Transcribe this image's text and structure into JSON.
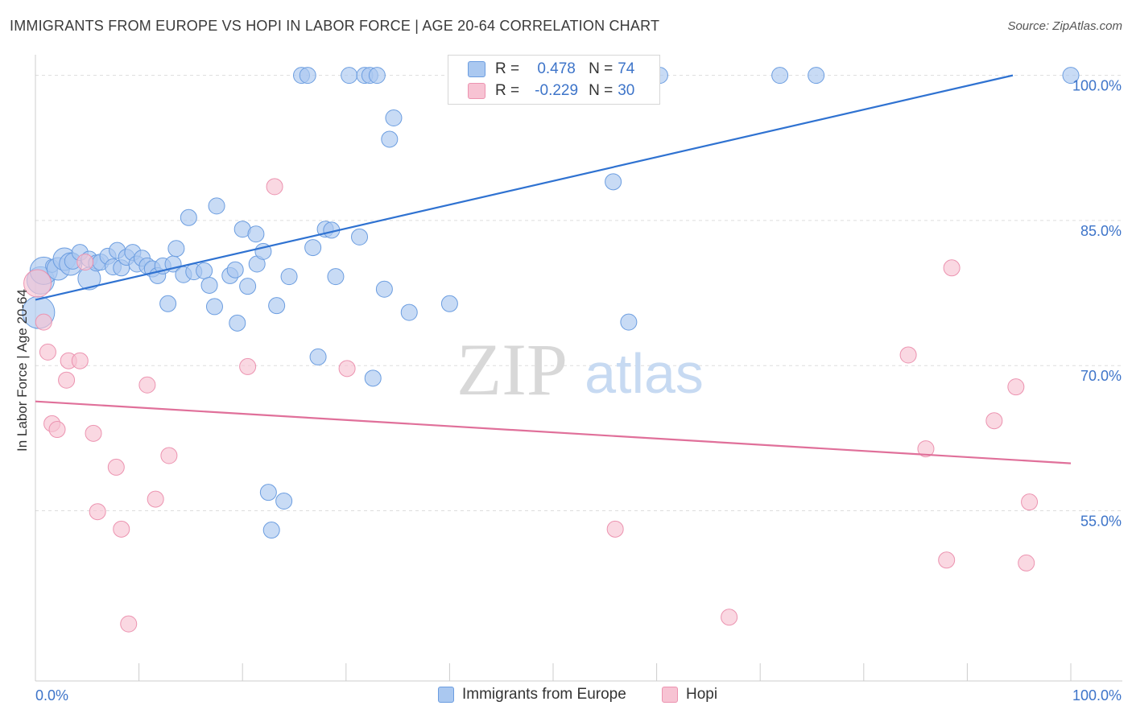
{
  "header": {
    "title": "IMMIGRANTS FROM EUROPE VS HOPI IN LABOR FORCE | AGE 20-64 CORRELATION CHART",
    "source": "Source: ZipAtlas.com"
  },
  "watermark": {
    "part1": "ZIP",
    "part2": "atlas"
  },
  "stats": {
    "r_label": "R =",
    "n_label": "N =",
    "rows": [
      {
        "r": "0.478",
        "n": "74",
        "color": "#aac8f0",
        "border": "#6b9de0"
      },
      {
        "r": "-0.229",
        "n": "30",
        "color": "#f7c3d3",
        "border": "#ec93b0"
      }
    ]
  },
  "legend": {
    "items": [
      {
        "label": "Immigrants from Europe",
        "color": "#aac8f0",
        "border": "#6b9de0"
      },
      {
        "label": "Hopi",
        "color": "#f7c3d3",
        "border": "#ec93b0"
      }
    ]
  },
  "chart_data": {
    "type": "scatter",
    "title": "IMMIGRANTS FROM EUROPE VS HOPI IN LABOR FORCE | AGE 20-64 CORRELATION CHART",
    "xlabel": "",
    "ylabel": "In Labor Force | Age 20-64",
    "xlim": [
      0,
      100
    ],
    "ylim": [
      39.4,
      101.3
    ],
    "x_tick_labels": [
      {
        "value": 0,
        "label": "0.0%"
      },
      {
        "value": 100,
        "label": "100.0%"
      }
    ],
    "y_ticks": [
      {
        "value": 55,
        "label": "55.0%"
      },
      {
        "value": 70,
        "label": "70.0%"
      },
      {
        "value": 85,
        "label": "85.0%"
      },
      {
        "value": 100,
        "label": "100.0%"
      }
    ],
    "grid": true,
    "legend_position": "bottom",
    "series": [
      {
        "name": "Immigrants from Europe",
        "color": "#aac8f0",
        "stroke": "#6b9de0",
        "line_color": "#2f72d1",
        "trend": {
          "x": [
            0,
            94.4
          ],
          "y": [
            76.8,
            100.0
          ]
        },
        "points": [
          [
            0.3,
            75.5,
            3
          ],
          [
            0.5,
            78.8,
            2
          ],
          [
            0.8,
            79.8,
            2
          ],
          [
            1.6,
            80.3,
            1.5
          ],
          [
            2.2,
            80.0,
            1
          ],
          [
            2.8,
            81.0,
            1
          ],
          [
            3.4,
            80.5,
            1
          ],
          [
            3.6,
            80.8,
            0
          ],
          [
            4.3,
            81.7,
            0
          ],
          [
            5.2,
            81.0,
            0
          ],
          [
            5.2,
            79.0,
            1
          ],
          [
            5.9,
            80.6,
            0
          ],
          [
            6.3,
            80.7,
            0
          ],
          [
            7.0,
            81.3,
            0
          ],
          [
            7.5,
            80.2,
            0
          ],
          [
            7.9,
            81.9,
            0
          ],
          [
            8.3,
            80.1,
            0
          ],
          [
            8.8,
            81.2,
            0
          ],
          [
            9.4,
            81.7,
            0
          ],
          [
            9.8,
            80.5,
            0
          ],
          [
            10.3,
            81.1,
            0
          ],
          [
            10.8,
            80.3,
            0
          ],
          [
            11.3,
            80.0,
            0
          ],
          [
            11.8,
            79.3,
            0
          ],
          [
            12.3,
            80.3,
            0
          ],
          [
            12.8,
            76.4,
            0
          ],
          [
            13.3,
            80.5,
            0
          ],
          [
            13.6,
            82.1,
            0
          ],
          [
            14.3,
            79.4,
            0
          ],
          [
            14.8,
            85.3,
            0
          ],
          [
            15.3,
            79.7,
            0
          ],
          [
            16.3,
            79.8,
            0
          ],
          [
            16.8,
            78.3,
            0
          ],
          [
            17.3,
            76.1,
            0
          ],
          [
            17.5,
            86.5,
            0
          ],
          [
            18.8,
            79.3,
            0
          ],
          [
            19.3,
            79.9,
            0
          ],
          [
            19.5,
            74.4,
            0
          ],
          [
            20.0,
            84.1,
            0
          ],
          [
            20.5,
            78.2,
            0
          ],
          [
            21.3,
            83.6,
            0
          ],
          [
            21.4,
            80.5,
            0
          ],
          [
            22.0,
            81.8,
            0
          ],
          [
            22.5,
            56.9,
            0
          ],
          [
            22.8,
            53.0,
            0
          ],
          [
            23.3,
            76.2,
            0
          ],
          [
            24.0,
            56.0,
            0
          ],
          [
            24.5,
            79.2,
            0
          ],
          [
            25.7,
            100.0,
            0
          ],
          [
            26.3,
            100.0,
            0
          ],
          [
            26.8,
            82.2,
            0
          ],
          [
            27.3,
            70.9,
            0
          ],
          [
            28.0,
            84.1,
            0
          ],
          [
            28.6,
            84.0,
            0
          ],
          [
            29.0,
            79.2,
            0
          ],
          [
            30.3,
            100.0,
            0
          ],
          [
            31.3,
            83.3,
            0
          ],
          [
            31.8,
            100.0,
            0
          ],
          [
            32.3,
            100.0,
            0
          ],
          [
            32.6,
            68.7,
            0
          ],
          [
            33.0,
            100.0,
            0
          ],
          [
            33.7,
            77.9,
            0
          ],
          [
            34.2,
            93.4,
            0
          ],
          [
            34.6,
            95.6,
            0
          ],
          [
            36.1,
            75.5,
            0
          ],
          [
            40.0,
            76.4,
            0
          ],
          [
            55.8,
            89.0,
            0
          ],
          [
            56.3,
            100.0,
            0
          ],
          [
            57.3,
            74.5,
            0
          ],
          [
            58.7,
            100.0,
            0
          ],
          [
            60.3,
            100.0,
            0
          ],
          [
            71.9,
            100.0,
            0
          ],
          [
            75.4,
            100.0,
            0
          ],
          [
            100.0,
            100.0,
            0
          ]
        ]
      },
      {
        "name": "Hopi",
        "color": "#f7c3d3",
        "stroke": "#ec93b0",
        "line_color": "#e0709a",
        "trend": {
          "x": [
            0,
            100
          ],
          "y": [
            66.3,
            59.9
          ]
        },
        "points": [
          [
            0.2,
            78.5,
            2
          ],
          [
            0.8,
            74.5,
            0
          ],
          [
            1.2,
            71.4,
            0
          ],
          [
            1.6,
            64.0,
            0
          ],
          [
            2.1,
            63.4,
            0
          ],
          [
            3.0,
            68.5,
            0
          ],
          [
            3.2,
            70.5,
            0
          ],
          [
            4.3,
            70.5,
            0
          ],
          [
            4.8,
            80.7,
            0
          ],
          [
            5.6,
            63.0,
            0
          ],
          [
            6.0,
            54.9,
            0
          ],
          [
            7.8,
            59.5,
            0
          ],
          [
            8.3,
            53.1,
            0
          ],
          [
            9.0,
            43.3,
            0
          ],
          [
            10.8,
            68.0,
            0
          ],
          [
            11.6,
            56.2,
            0
          ],
          [
            12.9,
            60.7,
            0
          ],
          [
            20.5,
            69.9,
            0
          ],
          [
            23.1,
            88.5,
            0
          ],
          [
            30.1,
            69.7,
            0
          ],
          [
            56.0,
            53.1,
            0
          ],
          [
            67.0,
            44.0,
            0
          ],
          [
            84.3,
            71.1,
            0
          ],
          [
            86.0,
            61.4,
            0
          ],
          [
            88.0,
            49.9,
            0
          ],
          [
            88.5,
            80.1,
            0
          ],
          [
            92.6,
            64.3,
            0
          ],
          [
            94.7,
            67.8,
            0
          ],
          [
            95.7,
            49.6,
            0
          ],
          [
            96.0,
            55.9,
            0
          ]
        ]
      }
    ]
  }
}
